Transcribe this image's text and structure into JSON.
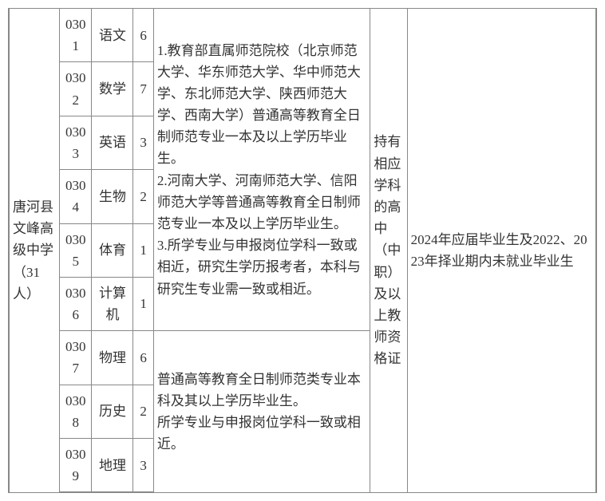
{
  "school": "唐河县文峰高级中学（31人）",
  "qual": "持有相应学科的高中（中职）及以上教师资格证",
  "grad": "2024年应届毕业生及2022、2023年择业期内未就业毕业生",
  "rows": [
    {
      "code": "0301",
      "subj": "语文",
      "cnt": "6"
    },
    {
      "code": "0302",
      "subj": "数学",
      "cnt": "7"
    },
    {
      "code": "0303",
      "subj": "英语",
      "cnt": "3"
    },
    {
      "code": "0304",
      "subj": "生物",
      "cnt": "2"
    },
    {
      "code": "0305",
      "subj": "体育",
      "cnt": "1"
    },
    {
      "code": "0306",
      "subj": "计算机",
      "cnt": "1"
    },
    {
      "code": "0307",
      "subj": "物理",
      "cnt": "6"
    },
    {
      "code": "0308",
      "subj": "历史",
      "cnt": "2"
    },
    {
      "code": "0309",
      "subj": "地理",
      "cnt": "3"
    }
  ],
  "req1": "1.教育部直属师范院校（北京师范大学、华东师范大学、华中师范大学、东北师范大学、陕西师范大学、西南大学）普通高等教育全日制师范专业一本及以上学历毕业生。\n2.河南大学、河南师范大学、信阳师范大学等普通高等教育全日制师范专业一本及以上学历毕业生。\n3.所学专业与申报岗位学科一致或相近，研究生学历报考者，本科与研究生专业需一致或相近。",
  "req2": "普通高等教育全日制师范类专业本科及其以上学历毕业生。\n所学专业与申报岗位学科一致或相近。"
}
